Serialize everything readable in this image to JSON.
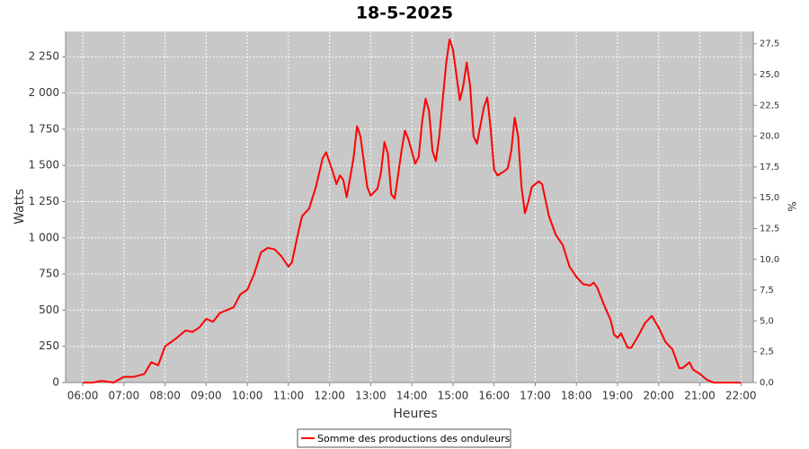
{
  "chart_data": {
    "type": "line",
    "title": "18-5-2025",
    "x_label": "Heures",
    "y_label": "Watts",
    "y2_label": "%",
    "x": [
      "06:00",
      "06:15",
      "06:25",
      "06:30",
      "06:45",
      "07:00",
      "07:15",
      "07:30",
      "07:40",
      "07:50",
      "08:00",
      "08:15",
      "08:30",
      "08:40",
      "08:50",
      "09:00",
      "09:10",
      "09:20",
      "09:30",
      "09:40",
      "09:50",
      "10:00",
      "10:10",
      "10:20",
      "10:30",
      "10:40",
      "10:50",
      "11:00",
      "11:05",
      "11:15",
      "11:20",
      "11:30",
      "11:40",
      "11:50",
      "11:55",
      "12:05",
      "12:10",
      "12:15",
      "12:20",
      "12:25",
      "12:35",
      "12:40",
      "12:45",
      "12:55",
      "13:00",
      "13:10",
      "13:15",
      "13:20",
      "13:25",
      "13:30",
      "13:35",
      "13:45",
      "13:50",
      "13:55",
      "14:05",
      "14:10",
      "14:15",
      "14:20",
      "14:25",
      "14:30",
      "14:35",
      "14:40",
      "14:50",
      "14:55",
      "15:00",
      "15:10",
      "15:15",
      "15:20",
      "15:25",
      "15:30",
      "15:35",
      "15:45",
      "15:50",
      "15:55",
      "16:00",
      "16:05",
      "16:15",
      "16:20",
      "16:25",
      "16:30",
      "16:35",
      "16:40",
      "16:45",
      "16:50",
      "16:55",
      "17:05",
      "17:10",
      "17:20",
      "17:30",
      "17:40",
      "17:50",
      "18:00",
      "18:10",
      "18:20",
      "18:25",
      "18:30",
      "18:40",
      "18:50",
      "18:55",
      "19:00",
      "19:05",
      "19:15",
      "19:20",
      "19:30",
      "19:40",
      "19:50",
      "20:00",
      "20:10",
      "20:20",
      "20:30",
      "20:35",
      "20:45",
      "20:50",
      "21:00",
      "21:10",
      "21:20",
      "22:00"
    ],
    "series": [
      {
        "name": "Somme des productions des onduleurs",
        "color": "#ff0000",
        "values": [
          0,
          0,
          10,
          10,
          0,
          40,
          40,
          60,
          140,
          120,
          250,
          300,
          360,
          350,
          380,
          440,
          420,
          480,
          500,
          520,
          610,
          640,
          750,
          900,
          930,
          920,
          870,
          800,
          830,
          1050,
          1150,
          1200,
          1350,
          1550,
          1590,
          1450,
          1370,
          1430,
          1400,
          1280,
          1550,
          1770,
          1700,
          1350,
          1290,
          1340,
          1450,
          1660,
          1580,
          1300,
          1270,
          1600,
          1740,
          1680,
          1510,
          1560,
          1800,
          1960,
          1880,
          1600,
          1530,
          1700,
          2200,
          2370,
          2300,
          1950,
          2050,
          2210,
          2050,
          1700,
          1650,
          1900,
          1970,
          1750,
          1470,
          1430,
          1460,
          1480,
          1600,
          1830,
          1700,
          1350,
          1170,
          1250,
          1350,
          1390,
          1370,
          1150,
          1020,
          950,
          800,
          730,
          680,
          670,
          690,
          660,
          540,
          430,
          330,
          310,
          340,
          240,
          240,
          320,
          410,
          460,
          380,
          280,
          230,
          100,
          100,
          140,
          90,
          60,
          20,
          0,
          0
        ]
      }
    ],
    "xlim": [
      "05:35",
      "22:18"
    ],
    "xticks": [
      "06:00",
      "07:00",
      "08:00",
      "09:00",
      "10:00",
      "11:00",
      "12:00",
      "13:00",
      "14:00",
      "15:00",
      "16:00",
      "17:00",
      "18:00",
      "19:00",
      "20:00",
      "21:00",
      "22:00"
    ],
    "ylim": [
      0,
      2425
    ],
    "yticks": [
      0,
      250,
      500,
      750,
      {
        "value": 1000,
        "label": "1 000"
      },
      {
        "value": 1250,
        "label": "1 250"
      },
      {
        "value": 1500,
        "label": "1 500"
      },
      {
        "value": 1750,
        "label": "1 750"
      },
      {
        "value": 2000,
        "label": "2 000"
      },
      {
        "value": 2250,
        "label": "2 250"
      }
    ],
    "y2lim": [
      0,
      28.5
    ],
    "y2ticks": [
      {
        "value": 0,
        "label": "0,0"
      },
      {
        "value": 2.5,
        "label": "2,5"
      },
      {
        "value": 5,
        "label": "5,0"
      },
      {
        "value": 7.5,
        "label": "7,5"
      },
      {
        "value": 10,
        "label": "10,0"
      },
      {
        "value": 12.5,
        "label": "12,5"
      },
      {
        "value": 15,
        "label": "15,0"
      },
      {
        "value": 17.5,
        "label": "17,5"
      },
      {
        "value": 20,
        "label": "20,0"
      },
      {
        "value": 22.5,
        "label": "22,5"
      },
      {
        "value": 25,
        "label": "25,0"
      },
      {
        "value": 27.5,
        "label": "27,5"
      }
    ],
    "grid": true,
    "legend": "bottom"
  }
}
